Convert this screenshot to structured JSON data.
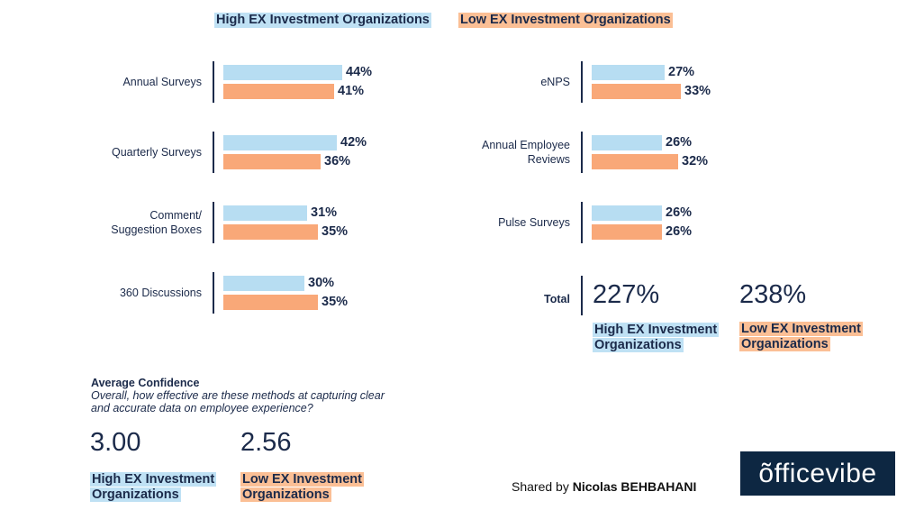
{
  "legend": {
    "high": "High EX Investment Organizations",
    "low": "Low EX Investment Organizations",
    "high_line1": "High EX Investment",
    "high_line2": "Organizations",
    "low_line1": "Low EX Investment",
    "low_line2": "Organizations"
  },
  "colors": {
    "high": "#b7ddf2",
    "low": "#f9a878",
    "high_highlight": "#bfe1f4",
    "low_highlight": "#fbbf95",
    "text": "#1b2a4a",
    "logo_bg": "#0d2742"
  },
  "chart_data": [
    {
      "type": "bar",
      "orientation": "horizontal",
      "categories": [
        "Annual Surveys",
        "Quarterly Surveys",
        "Comment/\nSuggestion Boxes",
        "360 Discussions"
      ],
      "series": [
        {
          "name": "High EX Investment Organizations",
          "values": [
            44,
            42,
            31,
            30
          ]
        },
        {
          "name": "Low EX Investment Organizations",
          "values": [
            41,
            36,
            35,
            35
          ]
        }
      ],
      "value_labels": {
        "high": [
          "44%",
          "42%",
          "31%",
          "30%"
        ],
        "low": [
          "41%",
          "36%",
          "35%",
          "35%"
        ]
      },
      "xlim": [
        0,
        50
      ],
      "unit": "%"
    },
    {
      "type": "bar",
      "orientation": "horizontal",
      "categories": [
        "eNPS",
        "Annual Employee\nReviews",
        "Pulse Surveys"
      ],
      "series": [
        {
          "name": "High EX Investment Organizations",
          "values": [
            27,
            26,
            26
          ]
        },
        {
          "name": "Low EX Investment Organizations",
          "values": [
            33,
            32,
            26
          ]
        }
      ],
      "value_labels": {
        "high": [
          "27%",
          "26%",
          "26%"
        ],
        "low": [
          "33%",
          "32%",
          "26%"
        ]
      },
      "xlim": [
        0,
        50
      ],
      "unit": "%"
    }
  ],
  "total": {
    "label": "Total",
    "high": "227%",
    "low": "238%"
  },
  "confidence": {
    "title": "Average Confidence",
    "question": "Overall, how effective are these methods at capturing clear and accurate data on employee experience?",
    "high": "3.00",
    "low": "2.56"
  },
  "footer": {
    "shared_prefix": "Shared by",
    "author": "Nicolas BEHBAHANI",
    "logo_text": "õfficevibe"
  }
}
